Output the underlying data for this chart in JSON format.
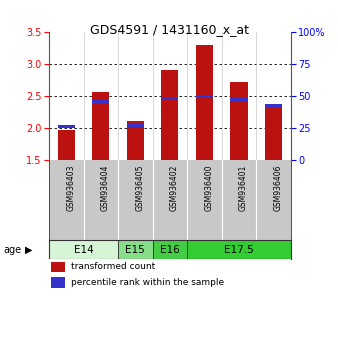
{
  "title": "GDS4591 / 1431160_x_at",
  "samples": [
    "GSM936403",
    "GSM936404",
    "GSM936405",
    "GSM936402",
    "GSM936400",
    "GSM936401",
    "GSM936406"
  ],
  "transformed_count": [
    1.97,
    2.57,
    2.11,
    2.91,
    3.3,
    2.72,
    2.38
  ],
  "percentile_rank": [
    26,
    46,
    27,
    48,
    50,
    47,
    43
  ],
  "bar_bottom": 1.5,
  "ylim_left": [
    1.5,
    3.5
  ],
  "ylim_right": [
    0,
    100
  ],
  "yticks_left": [
    1.5,
    2.0,
    2.5,
    3.0,
    3.5
  ],
  "yticks_right": [
    0,
    25,
    50,
    75,
    100
  ],
  "bar_color": "#bb1111",
  "percentile_color": "#3333cc",
  "ages": [
    {
      "label": "E14",
      "span": [
        0,
        1
      ],
      "color": "#d6f5d6"
    },
    {
      "label": "E15",
      "span": [
        2,
        2
      ],
      "color": "#88dd88"
    },
    {
      "label": "E16",
      "span": [
        3,
        3
      ],
      "color": "#44cc44"
    },
    {
      "label": "E17.5",
      "span": [
        4,
        6
      ],
      "color": "#33cc33"
    }
  ],
  "legend_bar_color": "#bb1111",
  "legend_pct_color": "#3333cc",
  "bar_width": 0.5,
  "grid_vals": [
    2.0,
    2.5,
    3.0
  ],
  "right_tick_labels": [
    "0",
    "25",
    "50",
    "75",
    "100%"
  ],
  "sample_bg": "#c8c8c8",
  "age_border_color": "#333333"
}
